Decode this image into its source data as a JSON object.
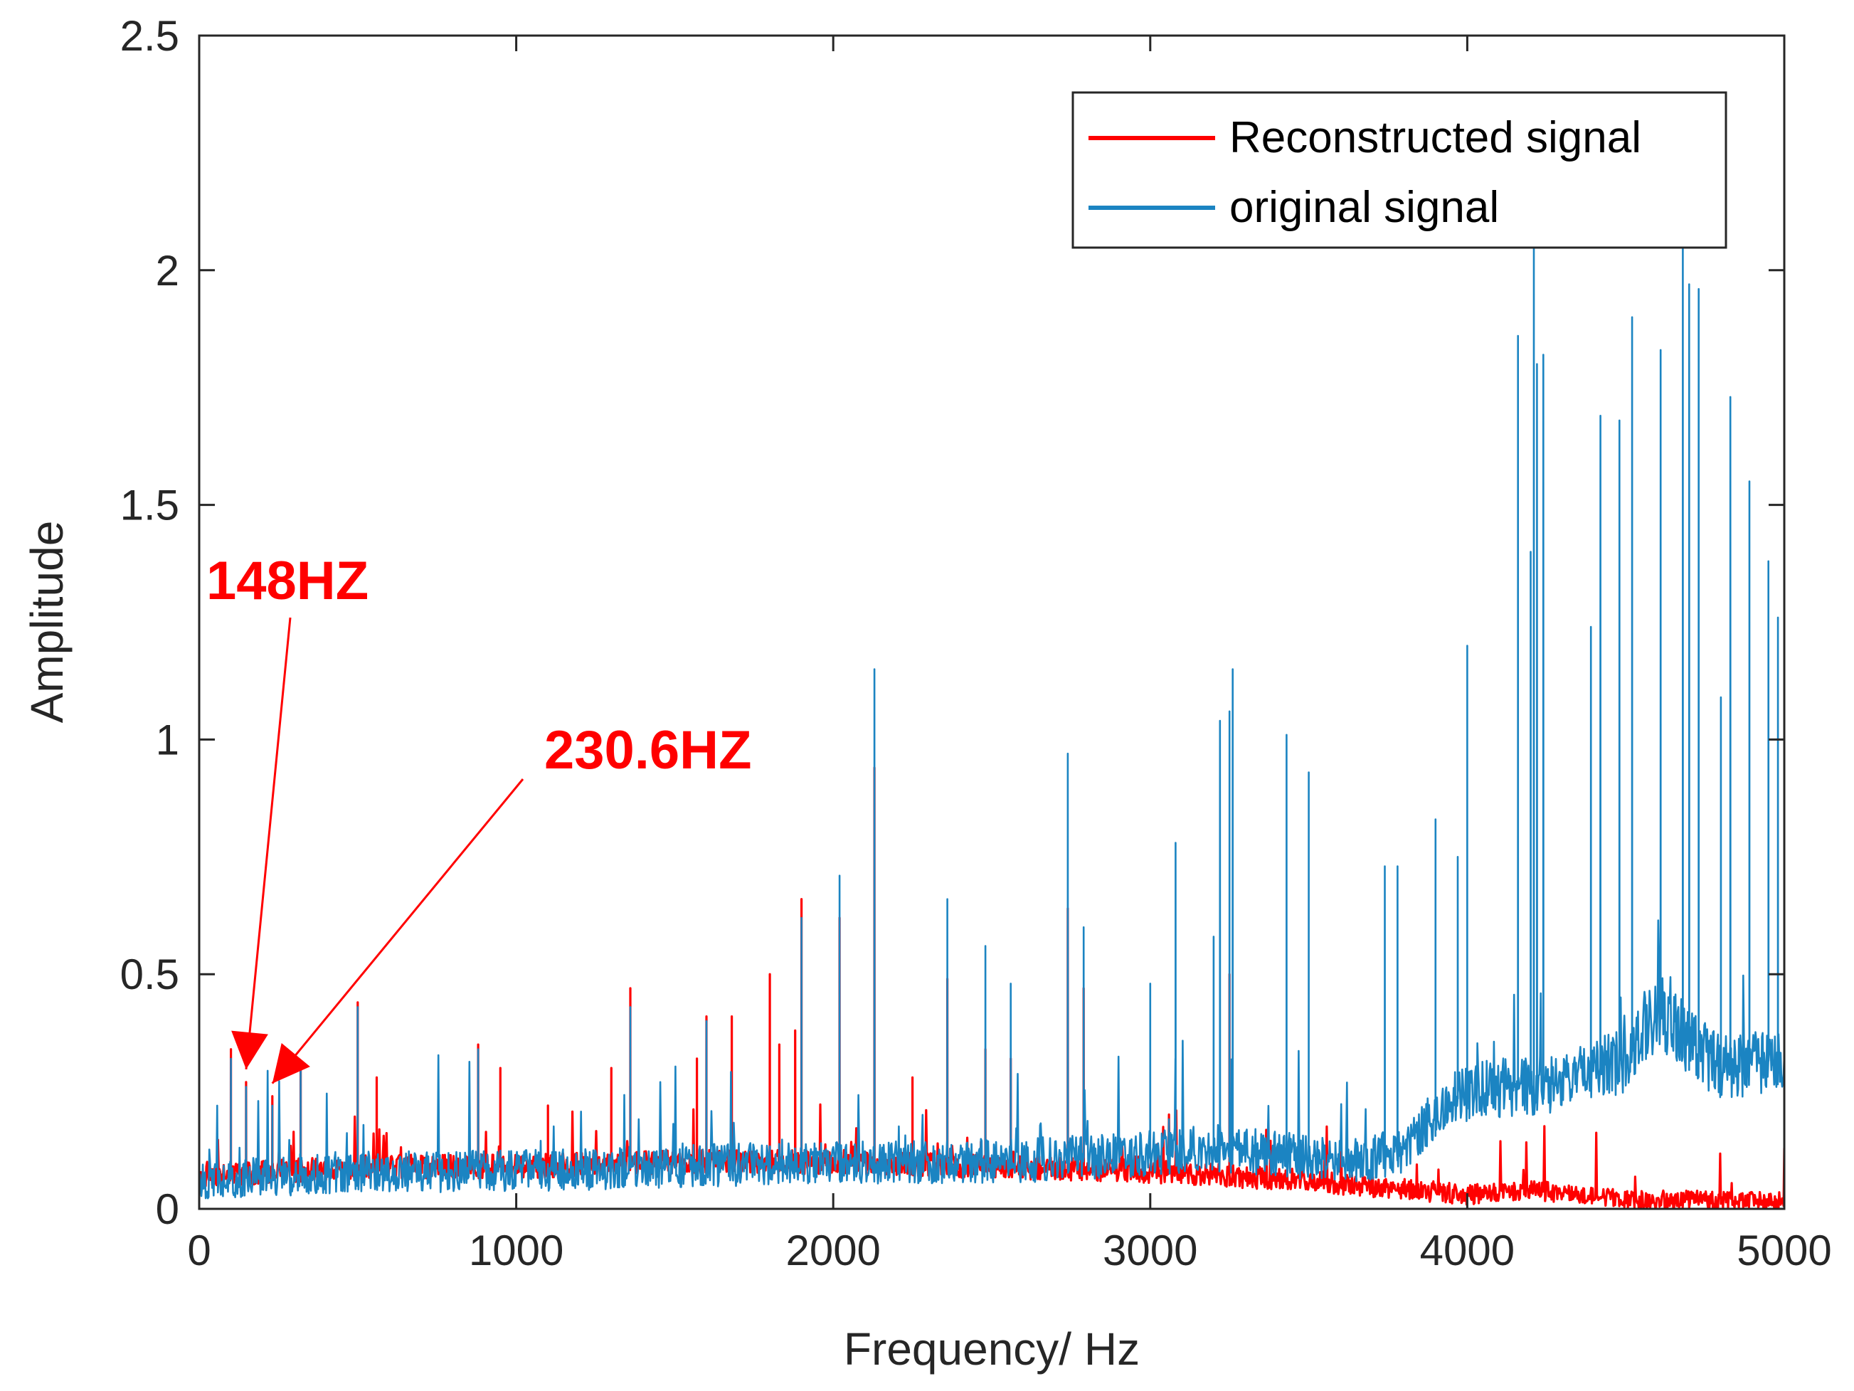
{
  "chart_data": {
    "type": "line",
    "title": "",
    "xlabel": "Frequency/ Hz",
    "ylabel": "Amplitude",
    "xlim": [
      0,
      5000
    ],
    "ylim": [
      0,
      2.5
    ],
    "xticks": [
      0,
      1000,
      2000,
      3000,
      4000,
      5000
    ],
    "xtick_labels": [
      "0",
      "1000",
      "2000",
      "3000",
      "4000",
      "5000"
    ],
    "yticks": [
      0,
      0.5,
      1,
      1.5,
      2,
      2.5
    ],
    "ytick_labels": [
      "0",
      "0.5",
      "1",
      "1.5",
      "2",
      "2.5"
    ],
    "grid": false,
    "legend": {
      "placement": "top-right",
      "entries": [
        "Reconstructed signal",
        "original signal"
      ]
    },
    "series": [
      {
        "name": "Reconstructed signal",
        "color": "#ff0000",
        "baseline": [
          [
            0,
            0.07
          ],
          [
            500,
            0.09
          ],
          [
            1000,
            0.09
          ],
          [
            1500,
            0.1
          ],
          [
            2000,
            0.1
          ],
          [
            2500,
            0.09
          ],
          [
            3000,
            0.08
          ],
          [
            3500,
            0.06
          ],
          [
            4000,
            0.03
          ],
          [
            4200,
            0.04
          ],
          [
            4500,
            0.02
          ],
          [
            5000,
            0.015
          ]
        ],
        "noise_amplitude": 0.05,
        "peaks": [
          [
            100,
            0.34
          ],
          [
            148,
            0.27
          ],
          [
            230.6,
            0.24
          ],
          [
            320,
            0.3
          ],
          [
            500,
            0.44
          ],
          [
            560,
            0.28
          ],
          [
            880,
            0.35
          ],
          [
            950,
            0.3
          ],
          [
            1100,
            0.22
          ],
          [
            1300,
            0.3
          ],
          [
            1360,
            0.47
          ],
          [
            1570,
            0.32
          ],
          [
            1600,
            0.41
          ],
          [
            1680,
            0.41
          ],
          [
            1800,
            0.5
          ],
          [
            1830,
            0.35
          ],
          [
            1880,
            0.38
          ],
          [
            1900,
            0.66
          ],
          [
            2020,
            0.62
          ],
          [
            2130,
            0.94
          ],
          [
            2250,
            0.28
          ],
          [
            2360,
            0.49
          ],
          [
            2480,
            0.34
          ],
          [
            2560,
            0.32
          ],
          [
            2740,
            0.64
          ],
          [
            2790,
            0.47
          ],
          [
            3250,
            0.5
          ]
        ]
      },
      {
        "name": "original signal",
        "color": "#1b84c2",
        "baseline": [
          [
            0,
            0.06
          ],
          [
            500,
            0.08
          ],
          [
            1000,
            0.08
          ],
          [
            1500,
            0.09
          ],
          [
            2000,
            0.1
          ],
          [
            2500,
            0.1
          ],
          [
            2800,
            0.11
          ],
          [
            3000,
            0.12
          ],
          [
            3200,
            0.13
          ],
          [
            3500,
            0.11
          ],
          [
            3600,
            0.1
          ],
          [
            3800,
            0.12
          ],
          [
            3900,
            0.2
          ],
          [
            4000,
            0.25
          ],
          [
            4300,
            0.27
          ],
          [
            4500,
            0.32
          ],
          [
            4600,
            0.42
          ],
          [
            4650,
            0.4
          ],
          [
            4700,
            0.35
          ],
          [
            4800,
            0.3
          ],
          [
            5000,
            0.32
          ]
        ],
        "noise_amplitude": 0.09,
        "peaks": [
          [
            100,
            0.32
          ],
          [
            148,
            0.26
          ],
          [
            230.6,
            0.22
          ],
          [
            320,
            0.3
          ],
          [
            500,
            0.43
          ],
          [
            880,
            0.34
          ],
          [
            1360,
            0.43
          ],
          [
            1600,
            0.4
          ],
          [
            1900,
            0.62
          ],
          [
            2020,
            0.71
          ],
          [
            2130,
            1.15
          ],
          [
            2360,
            0.66
          ],
          [
            2480,
            0.56
          ],
          [
            2560,
            0.48
          ],
          [
            2740,
            0.97
          ],
          [
            2790,
            0.6
          ],
          [
            3000,
            0.48
          ],
          [
            3080,
            0.78
          ],
          [
            3200,
            0.58
          ],
          [
            3220,
            1.04
          ],
          [
            3250,
            1.06
          ],
          [
            3260,
            1.15
          ],
          [
            3430,
            1.01
          ],
          [
            3500,
            0.93
          ],
          [
            3740,
            0.73
          ],
          [
            3780,
            0.73
          ],
          [
            3900,
            0.83
          ],
          [
            3970,
            0.75
          ],
          [
            4000,
            1.2
          ],
          [
            4160,
            1.86
          ],
          [
            4200,
            1.4
          ],
          [
            4210,
            2.05
          ],
          [
            4220,
            1.8
          ],
          [
            4240,
            1.82
          ],
          [
            4390,
            1.24
          ],
          [
            4420,
            1.69
          ],
          [
            4480,
            1.68
          ],
          [
            4520,
            1.9
          ],
          [
            4610,
            1.83
          ],
          [
            4680,
            2.05
          ],
          [
            4700,
            1.97
          ],
          [
            4730,
            1.96
          ],
          [
            4800,
            1.09
          ],
          [
            4830,
            1.73
          ],
          [
            4890,
            1.55
          ],
          [
            4950,
            1.38
          ],
          [
            4980,
            1.26
          ],
          [
            5000,
            2.02
          ]
        ]
      }
    ],
    "annotations": [
      {
        "text": "148HZ",
        "x": 148,
        "y": 0.27,
        "color": "#ff0000"
      },
      {
        "text": "230.6HZ",
        "x": 230.6,
        "y": 0.24,
        "color": "#ff0000"
      }
    ]
  }
}
